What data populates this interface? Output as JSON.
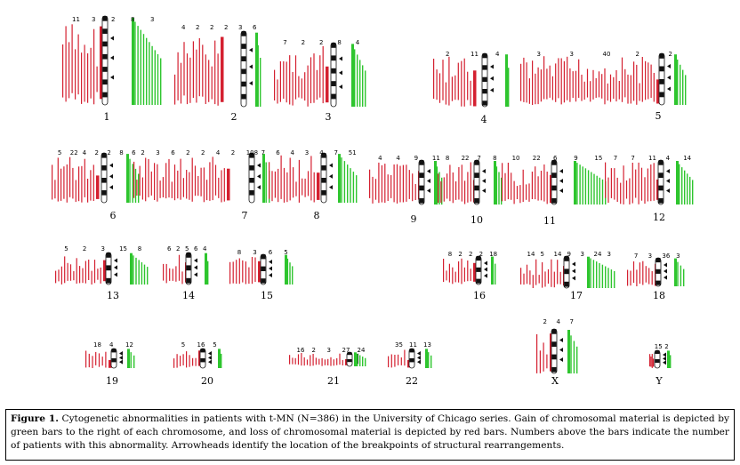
{
  "colors": {
    "gain": "#2ec52e",
    "loss": "#d42030",
    "ideogram": "#111111"
  },
  "figure": {
    "caption_label": "Figure 1.",
    "caption_text": "Cytogenetic abnormalities in patients with t-MN (N=386) in the University of Chicago series.  Gain of chromosomal material is depicted by green bars to the right of each chromosome, and loss of chromosomal material is depicted by red bars.  Numbers above the bars indicate the number of patients with this abnormality.  Arrowheads identify the location of the breakpoints of structural rearrangements."
  },
  "chromosomes": [
    {
      "label": "1",
      "counts": [
        "11",
        "3",
        "2",
        "8",
        "3"
      ]
    },
    {
      "label": "2",
      "counts": [
        "4",
        "2",
        "2",
        "2",
        "3",
        "6"
      ]
    },
    {
      "label": "3",
      "counts": [
        "7",
        "2",
        "2",
        "8",
        "4"
      ]
    },
    {
      "label": "4",
      "counts": [
        "2",
        "11",
        "4"
      ]
    },
    {
      "label": "5",
      "counts": [
        "3",
        "3",
        "40",
        "2",
        "2"
      ]
    },
    {
      "label": "6",
      "counts": [
        "5",
        "22",
        "4",
        "2",
        "2",
        "8",
        "6"
      ]
    },
    {
      "label": "7",
      "counts": [
        "2",
        "3",
        "6",
        "2",
        "2",
        "4",
        "2",
        "108",
        "7"
      ]
    },
    {
      "label": "8",
      "counts": [
        "6",
        "4",
        "3",
        "4",
        "7",
        "51"
      ]
    },
    {
      "label": "9",
      "counts": [
        "4",
        "4",
        "9",
        "11"
      ]
    },
    {
      "label": "10",
      "counts": [
        "8",
        "22",
        "7",
        "8"
      ]
    },
    {
      "label": "11",
      "counts": [
        "10",
        "22",
        "6",
        "9",
        "15"
      ]
    },
    {
      "label": "12",
      "counts": [
        "7",
        "7",
        "11",
        "4",
        "14"
      ]
    },
    {
      "label": "13",
      "counts": [
        "5",
        "2",
        "3",
        "15",
        "8"
      ]
    },
    {
      "label": "14",
      "counts": [
        "6",
        "2",
        "5",
        "6",
        "4"
      ]
    },
    {
      "label": "15",
      "counts": [
        "8",
        "3",
        "6",
        "5"
      ]
    },
    {
      "label": "16",
      "counts": [
        "8",
        "2",
        "2",
        "2",
        "18"
      ]
    },
    {
      "label": "17",
      "counts": [
        "14",
        "5",
        "14",
        "9",
        "3",
        "24",
        "3"
      ]
    },
    {
      "label": "18",
      "counts": [
        "7",
        "3",
        "36",
        "3"
      ]
    },
    {
      "label": "19",
      "counts": [
        "18",
        "4",
        "12"
      ]
    },
    {
      "label": "20",
      "counts": [
        "5",
        "16",
        "5"
      ]
    },
    {
      "label": "21",
      "counts": [
        "16",
        "2",
        "3",
        "27",
        "24"
      ]
    },
    {
      "label": "22",
      "counts": [
        "35",
        "11",
        "13"
      ]
    },
    {
      "label": "X",
      "counts": [
        "2",
        "4",
        "7"
      ]
    },
    {
      "label": "Y",
      "counts": [
        "15",
        "2"
      ]
    }
  ]
}
